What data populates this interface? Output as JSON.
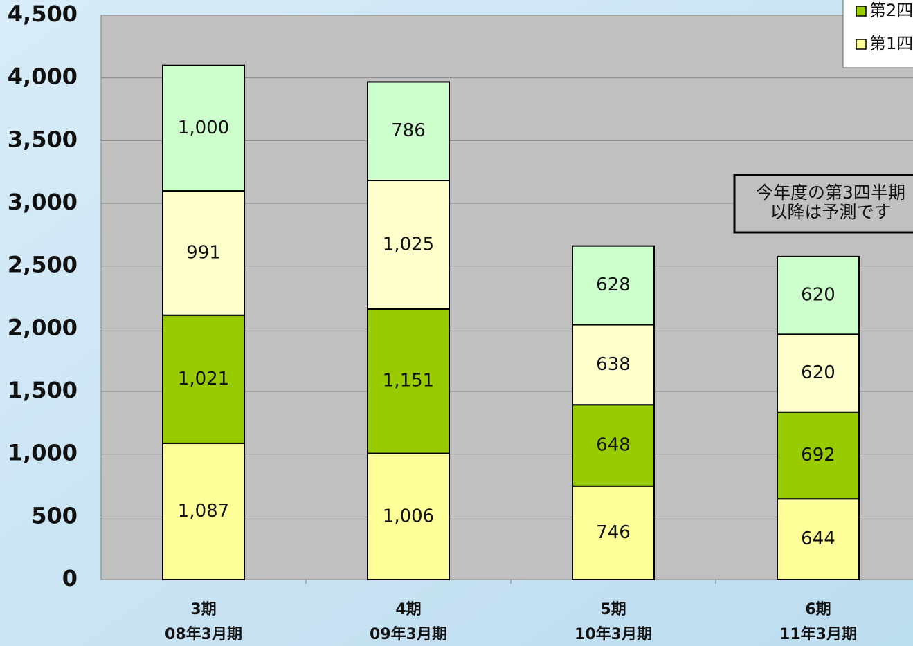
{
  "chart_data": {
    "type": "stacked_bar",
    "categories": [
      [
        "3期",
        "08年3月期"
      ],
      [
        "4期",
        "09年3月期"
      ],
      [
        "5期",
        "10年3月期"
      ],
      [
        "6期",
        "11年3月期"
      ]
    ],
    "series": [
      {
        "name": "第1四",
        "color": "#ffff99",
        "values": [
          1087,
          1006,
          746,
          644
        ],
        "value_labels": [
          "1,087",
          "1,006",
          "746",
          "644"
        ]
      },
      {
        "name": "第2四",
        "color": "#99cc00",
        "values": [
          1021,
          1151,
          648,
          692
        ],
        "value_labels": [
          "1,021",
          "1,151",
          "648",
          "692"
        ]
      },
      {
        "color": "#ffffcc",
        "values": [
          991,
          1025,
          638,
          620
        ],
        "value_labels": [
          "991",
          "1,025",
          "638",
          "620"
        ]
      },
      {
        "color": "#ccffcc",
        "values": [
          1000,
          786,
          628,
          620
        ],
        "value_labels": [
          "1,000",
          "786",
          "628",
          "620"
        ]
      }
    ],
    "ylim": [
      0,
      4500
    ],
    "yticks": [
      0,
      500,
      {
        "value": 1000,
        "label": "1,000"
      },
      {
        "value": 1500,
        "label": "1,500"
      },
      {
        "value": 2000,
        "label": "2,000"
      },
      {
        "value": 2500,
        "label": "2,500"
      },
      {
        "value": 3000,
        "label": "3,000"
      },
      {
        "value": 3500,
        "label": "3,500"
      },
      {
        "value": 4000,
        "label": "4,000"
      },
      {
        "value": 4500,
        "label": "4,500"
      }
    ],
    "grid": true,
    "legend": "top-right",
    "annotation": [
      "今年度の第3四半期",
      "以降は予測です"
    ]
  }
}
